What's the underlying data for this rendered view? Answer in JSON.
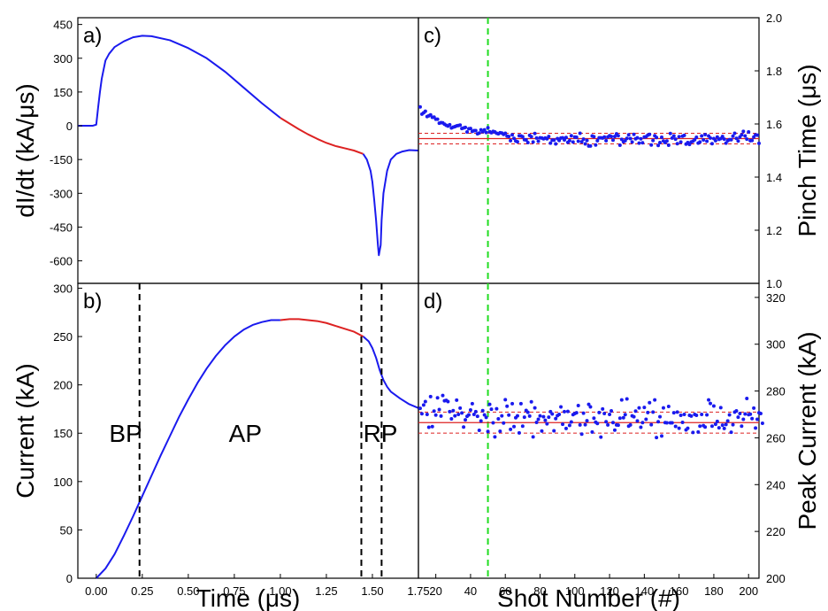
{
  "colors": {
    "trace": "#1a1aee",
    "highlight": "#dd2222",
    "mean": "#dd2222",
    "marker": "#22dd22",
    "phase": "#000000",
    "points": "#1a1aee"
  },
  "chart_data": [
    {
      "id": "a",
      "panel_label": "a)",
      "type": "line",
      "ylabel": "dI/dt (kA/μs)",
      "xlim": [
        -0.1,
        1.75
      ],
      "ylim": [
        -700,
        480
      ],
      "yticks": [
        -600,
        -450,
        -300,
        -150,
        0,
        150,
        300,
        450
      ],
      "series": [
        {
          "x": [
            -0.1,
            -0.02,
            0.0,
            0.01,
            0.02,
            0.03,
            0.04,
            0.05,
            0.07,
            0.1,
            0.15,
            0.2,
            0.25,
            0.3,
            0.4,
            0.5,
            0.6,
            0.7,
            0.8,
            0.9,
            1.0
          ],
          "y": [
            0,
            0,
            5,
            80,
            150,
            210,
            250,
            290,
            320,
            350,
            375,
            393,
            400,
            398,
            380,
            345,
            300,
            240,
            170,
            100,
            35
          ],
          "color_key": "trace"
        },
        {
          "x": [
            1.0,
            1.05,
            1.1,
            1.15,
            1.2,
            1.25,
            1.3,
            1.35,
            1.4,
            1.45
          ],
          "y": [
            35,
            10,
            -15,
            -38,
            -58,
            -76,
            -90,
            -100,
            -110,
            -125
          ],
          "color_key": "highlight"
        },
        {
          "x": [
            1.45,
            1.47,
            1.49,
            1.5,
            1.51,
            1.52,
            1.53,
            1.535,
            1.545,
            1.55,
            1.56,
            1.58,
            1.6,
            1.63,
            1.66,
            1.7,
            1.75
          ],
          "y": [
            -125,
            -150,
            -200,
            -250,
            -330,
            -420,
            -530,
            -575,
            -530,
            -420,
            -300,
            -200,
            -150,
            -125,
            -115,
            -108,
            -110
          ],
          "color_key": "trace"
        }
      ]
    },
    {
      "id": "b",
      "panel_label": "b)",
      "type": "line",
      "xlabel": "Time (μs)",
      "ylabel": "Current (kA)",
      "xlim": [
        -0.1,
        1.75
      ],
      "ylim": [
        0,
        305
      ],
      "xticks": [
        0.0,
        0.25,
        0.5,
        0.75,
        1.0,
        1.25,
        1.5,
        1.75
      ],
      "xtick_labels": [
        "0.00",
        "0.25",
        "0.50",
        "0.75",
        "1.00",
        "1.25",
        "1.50",
        "1.75"
      ],
      "yticks": [
        0,
        50,
        100,
        150,
        200,
        250,
        300
      ],
      "series": [
        {
          "x": [
            0.0,
            0.05,
            0.1,
            0.15,
            0.2,
            0.25,
            0.3,
            0.35,
            0.4,
            0.45,
            0.5,
            0.55,
            0.6,
            0.65,
            0.7,
            0.75,
            0.8,
            0.85,
            0.9,
            0.95,
            1.0
          ],
          "y": [
            0,
            10,
            25,
            44,
            64,
            85,
            106,
            127,
            147,
            167,
            185,
            202,
            217,
            230,
            241,
            250,
            257,
            262,
            265,
            267,
            267
          ],
          "color_key": "trace"
        },
        {
          "x": [
            1.0,
            1.05,
            1.1,
            1.15,
            1.2,
            1.25,
            1.3,
            1.35,
            1.4,
            1.45
          ],
          "y": [
            267,
            268,
            268,
            267,
            266,
            264,
            261,
            258,
            255,
            250
          ],
          "color_key": "highlight"
        },
        {
          "x": [
            1.45,
            1.48,
            1.5,
            1.52,
            1.54,
            1.56,
            1.58,
            1.6,
            1.65,
            1.7,
            1.75
          ],
          "y": [
            250,
            245,
            238,
            228,
            215,
            205,
            198,
            193,
            186,
            180,
            176
          ],
          "color_key": "trace"
        }
      ],
      "vlines": [
        0.235,
        1.44,
        1.55
      ],
      "regions": [
        {
          "label": "BP",
          "x": 0.07,
          "y": 150
        },
        {
          "label": "AP",
          "x": 0.72,
          "y": 150
        },
        {
          "label": "RP",
          "x": 1.45,
          "y": 150
        }
      ]
    },
    {
      "id": "c",
      "panel_label": "c)",
      "type": "scatter",
      "ylabel": "Pinch Time (μs)",
      "xlim": [
        10,
        206
      ],
      "ylim": [
        1.0,
        2.0
      ],
      "yticks": [
        1.0,
        1.2,
        1.4,
        1.6,
        1.8,
        2.0
      ],
      "yticklabels": [
        "1.0",
        "1.2",
        "1.4",
        "1.6",
        "1.8",
        "2.0"
      ],
      "start_x": 11,
      "y": [
        1.664,
        1.637,
        1.642,
        1.648,
        1.628,
        1.631,
        1.634,
        1.625,
        1.626,
        1.618,
        1.618,
        1.603,
        1.605,
        1.604,
        1.599,
        1.595,
        1.592,
        1.597,
        1.585,
        1.588,
        1.59,
        1.593,
        1.594,
        1.596,
        1.583,
        1.585,
        1.587,
        1.57,
        1.582,
        1.583,
        1.572,
        1.575,
        1.575,
        1.563,
        1.566,
        1.578,
        1.571,
        1.578,
        1.568,
        1.586,
        1.571,
        1.567,
        1.572,
        1.57,
        1.565,
        1.563,
        1.567,
        1.566,
        1.561,
        1.565,
        1.554,
        1.553,
        1.537,
        1.559,
        1.546,
        1.536,
        1.533,
        1.556,
        1.555,
        1.552,
        1.541,
        1.54,
        1.53,
        1.557,
        1.552,
        1.532,
        1.564,
        1.547,
        1.535,
        1.548,
        1.547,
        1.544,
        1.547,
        1.544,
        1.553,
        1.528,
        1.539,
        1.539,
        1.525,
        1.545,
        1.538,
        1.547,
        1.548,
        1.54,
        1.549,
        1.531,
        1.537,
        1.556,
        1.532,
        1.551,
        1.55,
        1.535,
        1.565,
        1.533,
        1.543,
        1.525,
        1.538,
        1.517,
        1.517,
        1.555,
        1.552,
        1.521,
        1.537,
        1.548,
        1.548,
        1.547,
        1.551,
        1.537,
        1.551,
        1.556,
        1.553,
        1.539,
        1.553,
        1.563,
        1.556,
        1.52,
        1.542,
        1.533,
        1.537,
        1.546,
        1.559,
        1.545,
        1.532,
        1.561,
        1.544,
        1.548,
        1.528,
        1.544,
        1.529,
        1.551,
        1.552,
        1.558,
        1.561,
        1.521,
        1.538,
        1.556,
        1.549,
        1.519,
        1.53,
        1.55,
        1.536,
        1.53,
        1.536,
        1.52,
        1.564,
        1.547,
        1.555,
        1.543,
        1.526,
        1.552,
        1.532,
        1.554,
        1.557,
        1.524,
        1.53,
        1.523,
        1.532,
        1.535,
        1.541,
        1.55,
        1.528,
        1.532,
        1.555,
        1.54,
        1.56,
        1.535,
        1.555,
        1.547,
        1.526,
        1.545,
        1.537,
        1.551,
        1.542,
        1.545,
        1.553,
        1.543,
        1.528,
        1.537,
        1.541,
        1.541,
        1.554,
        1.565,
        1.546,
        1.536,
        1.551,
        1.559,
        1.572,
        1.555,
        1.543,
        1.57,
        1.537,
        1.538,
        1.551,
        1.559,
        1.558,
        1.527
      ],
      "mean": 1.545,
      "band": [
        1.525,
        1.565
      ],
      "marker_x": 50
    },
    {
      "id": "d",
      "panel_label": "d)",
      "type": "scatter",
      "xlabel": "Shot Number (#)",
      "ylabel": "Peak Current (kA)",
      "xlim": [
        10,
        206
      ],
      "ylim": [
        200,
        326
      ],
      "xticks": [
        20,
        40,
        60,
        80,
        100,
        120,
        140,
        160,
        180,
        200
      ],
      "xtick_labels": [
        "20",
        "40",
        "60",
        "80",
        "100",
        "120",
        "140",
        "160",
        "180",
        "200"
      ],
      "extra_xtick_label": "1.75",
      "yticks": [
        200,
        220,
        240,
        260,
        280,
        300,
        320
      ],
      "start_x": 11,
      "y": [
        272.6,
        270.3,
        274.0,
        275.5,
        270.0,
        264.5,
        277.6,
        264.8,
        271.4,
        269.7,
        277.1,
        272.1,
        269.3,
        278.1,
        275.8,
        276.0,
        275.5,
        271.2,
        268.1,
        271.6,
        269.4,
        276.1,
        270.0,
        272.7,
        270.6,
        264.6,
        267.7,
        269.2,
        269.8,
        271.9,
        274.6,
        270.0,
        271.2,
        269.2,
        263.2,
        267.2,
        271.6,
        269.8,
        268.7,
        262.7,
        274.3,
        272.2,
        266.4,
        260.4,
        272.4,
        268.1,
        262.8,
        269.4,
        266.3,
        276.3,
        273.5,
        269.7,
        263.6,
        274.6,
        264.8,
        268.6,
        269.4,
        262.1,
        274.6,
        265.0,
        268.8,
        271.7,
        270.9,
        269.3,
        275.4,
        260.4,
        272.8,
        266.6,
        267.9,
        269.4,
        262.9,
        269.0,
        267.5,
        266.0,
        268.8,
        271.2,
        270.2,
        263.0,
        268.2,
        269.5,
        270.0,
        273.2,
        265.8,
        271.2,
        264.0,
        271.3,
        265.3,
        266.8,
        269.9,
        270.4,
        270.7,
        273.8,
        265.5,
        261.6,
        270.5,
        265.6,
        267.3,
        274.3,
        273.2,
        262.5,
        268.4,
        266.7,
        266.1,
        270.8,
        260.3,
        272.3,
        270.4,
        266.9,
        265.5,
        270.0,
        271.5,
        266.5,
        263.3,
        265.5,
        265.4,
        268.4,
        276.2,
        268.6,
        269.9,
        276.6,
        265.0,
        265.5,
        269.4,
        269.0,
        271.4,
        267.2,
        272.8,
        264.5,
        266.5,
        273.0,
        267.9,
        270.8,
        275.0,
        265.6,
        271.0,
        276.2,
        260.1,
        266.9,
        269.0,
        260.8,
        272.8,
        266.5,
        266.4,
        273.4,
        266.4,
        266.4,
        270.7,
        264.9,
        271.0,
        264.1,
        269.6,
        266.6,
        270.0,
        263.4,
        264.1,
        269.6,
        269.3,
        262.3,
        270.0,
        269.6,
        262.5,
        265.0,
        270.0,
        265.2,
        264.6,
        269.8,
        276.2,
        274.7,
        265.0,
        273.6,
        265.8,
        267.0,
        264.3,
        272.9,
        265.4,
        264.0,
        265.7,
        267.2,
        269.8,
        262.4,
        265.6,
        271.0,
        271.5,
        268.8,
        270.4,
        265.0,
        267.9,
        270.2,
        276.8,
        269.9,
        270.1,
        268.2,
        272.7,
        264.2,
        267.9,
        270.7,
        270.4,
        266.2
      ],
      "mean": 266.5,
      "band": [
        262,
        271
      ],
      "marker_x": 50
    }
  ]
}
